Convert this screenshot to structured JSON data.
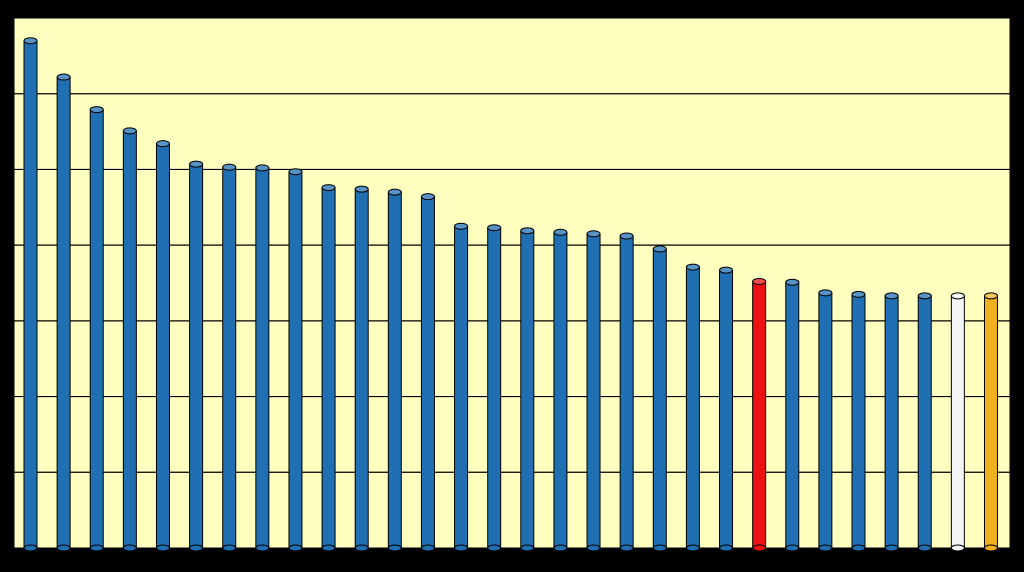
{
  "chart_data": {
    "type": "bar",
    "title": "",
    "xlabel": "",
    "ylabel": "",
    "ylim": [
      0,
      7
    ],
    "grid": true,
    "legend": "none",
    "values": [
      6.7,
      6.22,
      5.79,
      5.51,
      5.34,
      5.07,
      5.03,
      5.02,
      4.97,
      4.76,
      4.74,
      4.7,
      4.64,
      4.25,
      4.23,
      4.19,
      4.17,
      4.15,
      4.12,
      3.95,
      3.71,
      3.67,
      3.52,
      3.51,
      3.37,
      3.35,
      3.33,
      3.33,
      3.33,
      3.33
    ],
    "bar_colors": [
      "#1f6fb2",
      "#1f6fb2",
      "#1f6fb2",
      "#1f6fb2",
      "#1f6fb2",
      "#1f6fb2",
      "#1f6fb2",
      "#1f6fb2",
      "#1f6fb2",
      "#1f6fb2",
      "#1f6fb2",
      "#1f6fb2",
      "#1f6fb2",
      "#1f6fb2",
      "#1f6fb2",
      "#1f6fb2",
      "#1f6fb2",
      "#1f6fb2",
      "#1f6fb2",
      "#1f6fb2",
      "#1f6fb2",
      "#1f6fb2",
      "#ee1111",
      "#1f6fb2",
      "#1f6fb2",
      "#1f6fb2",
      "#1f6fb2",
      "#1f6fb2",
      "#f4f4f4",
      "#f0b020"
    ]
  },
  "colors": {
    "background": "#000000",
    "plot_area": "#ffffc0",
    "gridline": "#000000"
  }
}
